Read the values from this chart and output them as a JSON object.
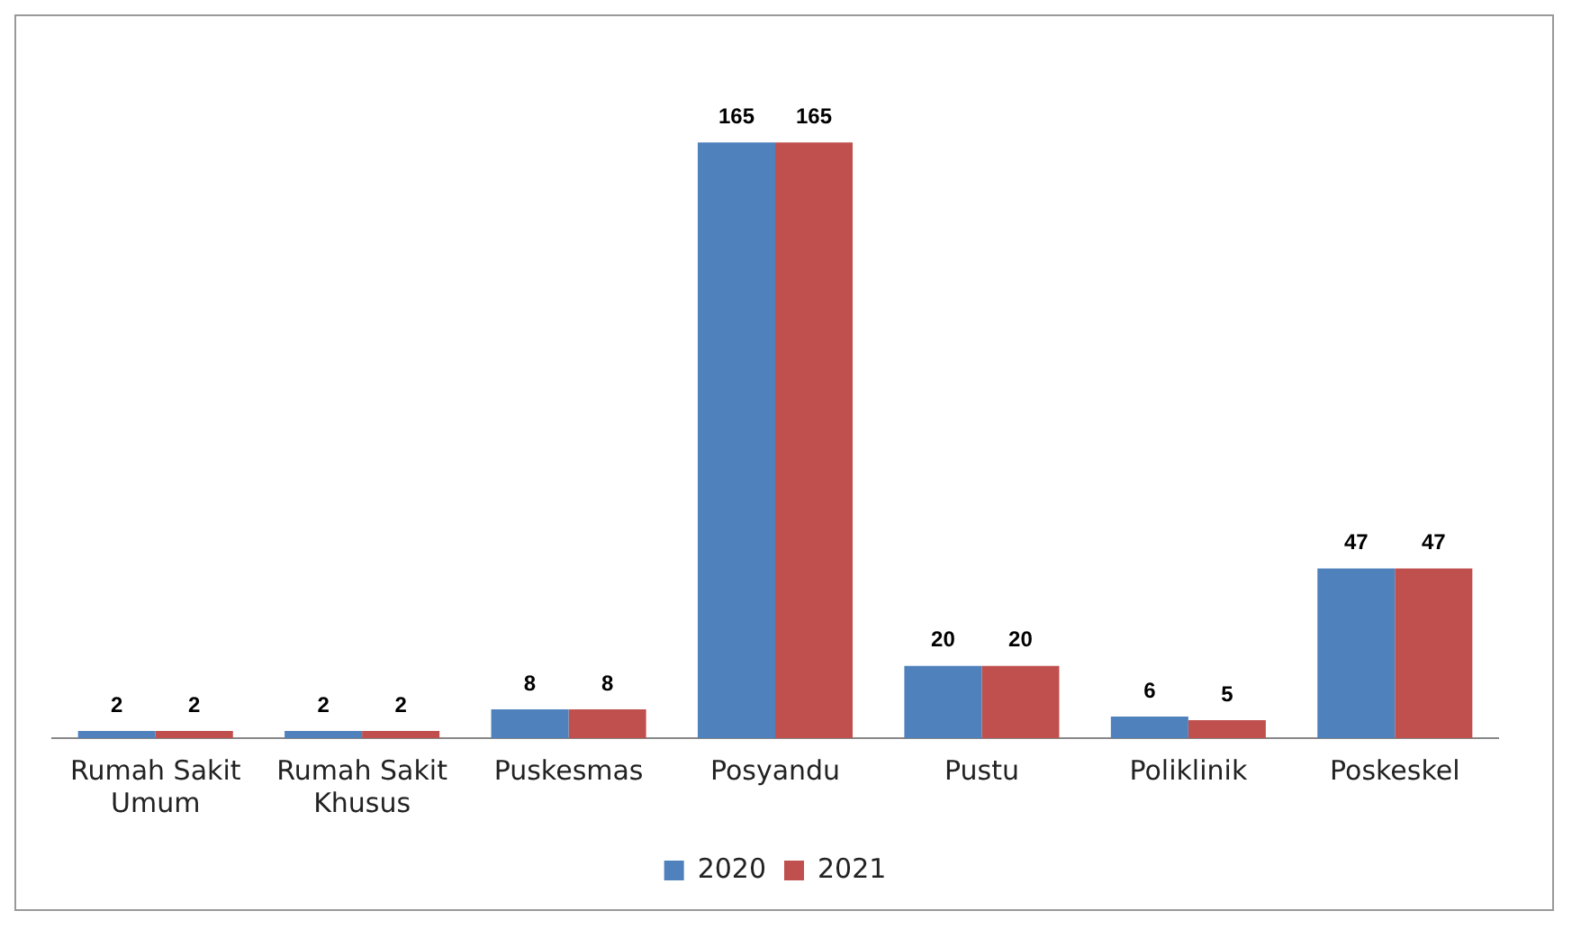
{
  "chart_data": {
    "type": "bar",
    "categories": [
      "Rumah Sakit Umum",
      "Rumah Sakit Khusus",
      "Puskesmas",
      "Posyandu",
      "Pustu",
      "Poliklinik",
      "Poskeskel"
    ],
    "series": [
      {
        "name": "2020",
        "color": "#4f81bd",
        "values": [
          2,
          2,
          8,
          165,
          20,
          6,
          47
        ]
      },
      {
        "name": "2021",
        "color": "#c0504d",
        "values": [
          2,
          2,
          8,
          165,
          20,
          5,
          47
        ]
      }
    ],
    "data_labels": true,
    "legend": "bottom"
  }
}
